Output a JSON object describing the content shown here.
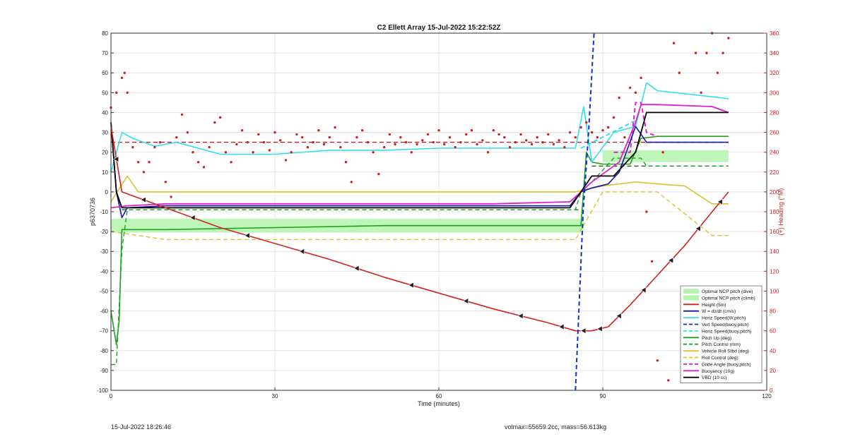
{
  "chart_data": {
    "type": "line",
    "title": "C2 Ellett Array 15-Jul-2022 15:22:52Z",
    "xlabel": "Time (minutes)",
    "ylabel": "p6370736",
    "y2label": "(+) Heading (°M)",
    "xlim": [
      0,
      120
    ],
    "ylim": [
      -100,
      80
    ],
    "y2lim": [
      0,
      360
    ],
    "xticks": [
      0,
      30,
      60,
      90,
      120
    ],
    "yticks": [
      -100,
      -90,
      -80,
      -70,
      -60,
      -50,
      -40,
      -30,
      -20,
      -10,
      0,
      10,
      20,
      30,
      40,
      50,
      60,
      70,
      80
    ],
    "y2ticks": [
      0,
      20,
      40,
      60,
      80,
      100,
      120,
      140,
      160,
      180,
      200,
      220,
      240,
      260,
      280,
      300,
      320,
      340,
      360
    ],
    "grid": true,
    "legend_position": "bottom-right",
    "colors": {
      "optimal": "#b6f5b0",
      "height": "#d42020",
      "w": "#1414a8",
      "horiz": "#30e0ee",
      "vert": "#1530c8",
      "pitch": "#20a020",
      "roll": "#dcc22a",
      "glide": "#e020d0",
      "buoy": "#e020d0",
      "vbd": "#000000",
      "heading": "#cc2020"
    },
    "bands": [
      {
        "name": "Optimal NCP pitch (dive)",
        "x": [
          0,
          86.5
        ],
        "y": [
          -20.5,
          -13.5
        ]
      },
      {
        "name": "Optimal NCP pitch (climb)",
        "x": [
          90,
          113
        ],
        "y": [
          15,
          21
        ]
      }
    ],
    "series": [
      {
        "name": "Height (5m)",
        "x": [
          0,
          2,
          10,
          20,
          30,
          40,
          50,
          60,
          70,
          80,
          85,
          88,
          91,
          95,
          100,
          105,
          110,
          113
        ],
        "y": [
          33,
          0,
          -8,
          -18,
          -26,
          -34,
          -43,
          -51,
          -59,
          -66,
          -70,
          -70,
          -68,
          -57,
          -42,
          -27,
          -10,
          0
        ]
      },
      {
        "name": "W = dz/dt (cm/s)",
        "x": [
          0,
          1,
          2,
          3,
          10,
          30,
          50,
          70,
          84,
          86,
          88,
          91,
          93,
          96,
          98,
          113
        ],
        "y": [
          35,
          0,
          -13,
          -8,
          -7,
          -7,
          -7,
          -7,
          -7,
          0,
          2,
          4,
          10,
          33,
          25,
          25
        ]
      },
      {
        "name": "Horiz Speed(W,pitch)",
        "x": [
          0,
          2,
          4,
          8,
          12,
          20,
          30,
          40,
          50,
          60,
          70,
          80,
          85,
          86.5,
          88,
          92,
          96,
          98,
          100,
          113
        ],
        "y": [
          10,
          30,
          27,
          23,
          25,
          19,
          19,
          21,
          21,
          22,
          22,
          22,
          22,
          43,
          15,
          30,
          33,
          55,
          51,
          47
        ]
      },
      {
        "name": "Vert Speed(buoy,pitch)",
        "x": [
          85,
          86.4,
          87.4,
          88.4
        ],
        "y": [
          -100,
          -10,
          30,
          80
        ]
      },
      {
        "name": "Horiz Speed(buoy,pitch)",
        "x": [
          86,
          96
        ],
        "y": [
          22,
          36
        ]
      },
      {
        "name": "Pitch Up (deg)",
        "x": [
          0,
          1,
          1.5,
          2,
          3,
          10,
          30,
          50,
          70,
          86,
          87,
          88,
          90,
          95,
          97,
          100,
          113
        ],
        "y": [
          -60,
          -77,
          -65,
          -19,
          -19,
          -19,
          -18,
          -17,
          -17,
          -17,
          20,
          15,
          14,
          14,
          27,
          28,
          28
        ]
      },
      {
        "name": "Pitch Control (mm)",
        "x": [
          0,
          1,
          2,
          3,
          10,
          30,
          50,
          70,
          85,
          86,
          88,
          92,
          97,
          98,
          113
        ],
        "y": [
          -87,
          -87,
          -29,
          -9,
          -9,
          -9,
          -9,
          -9,
          -9,
          0,
          5,
          17,
          17,
          13,
          13
        ]
      },
      {
        "name": "Vehicle Roll Stbd (deg)",
        "x": [
          0,
          3,
          5,
          10,
          20,
          30,
          40,
          50,
          60,
          70,
          80,
          85,
          90,
          96,
          100,
          105,
          110,
          113
        ],
        "y": [
          -5,
          8,
          0,
          0,
          0,
          0,
          0,
          0,
          0,
          0,
          0,
          0,
          3,
          5,
          4,
          3,
          -6,
          -6
        ]
      },
      {
        "name": "Roll Control (deg)",
        "x": [
          0,
          10,
          30,
          60,
          85,
          90,
          100,
          110,
          113
        ],
        "y": [
          -20,
          -24,
          -24,
          -24,
          -24,
          0,
          0,
          -22,
          -22
        ]
      },
      {
        "name": "Glide Angle (buoy,pitch)",
        "x": [
          92,
          95,
          96,
          97,
          98,
          100
        ],
        "y": [
          20,
          20,
          45,
          45,
          30,
          28
        ]
      },
      {
        "name": "Buoyancy (10g)",
        "x": [
          0,
          3,
          10,
          30,
          50,
          70,
          84,
          86,
          88,
          93,
          96,
          97,
          100,
          110,
          113
        ],
        "y": [
          -8,
          -7,
          -6,
          -6,
          -6,
          -6,
          -5,
          0,
          5,
          15,
          35,
          44,
          44,
          43,
          40
        ]
      },
      {
        "name": "VBD (10 cc)",
        "x": [
          0,
          1,
          2,
          3,
          10,
          30,
          50,
          70,
          84,
          86,
          88,
          92,
          96,
          98,
          113
        ],
        "y": [
          35,
          0,
          -8,
          -8,
          -8,
          -8,
          -8,
          -8,
          -8,
          0,
          8,
          8,
          20,
          40,
          40
        ]
      }
    ],
    "reference_lines": [
      {
        "name": "Height target (dashed red)",
        "y2": 250
      },
      {
        "name": "Pitch control (dashed green, dive)",
        "y": -9
      },
      {
        "name": "Pitch control (dashed green, climb)",
        "y": 13
      }
    ],
    "heading": {
      "name": "(+) Heading (°M)",
      "x": [
        0,
        1,
        2,
        2.5,
        3,
        4,
        5,
        6,
        7,
        8,
        9,
        10,
        11,
        12,
        13,
        14,
        15,
        16,
        17,
        18,
        19,
        20,
        21,
        22,
        23,
        24,
        25,
        26,
        27,
        28,
        29,
        30,
        31,
        32,
        33,
        34,
        35,
        36,
        37,
        38,
        39,
        40,
        41,
        42,
        43,
        44,
        45,
        46,
        47,
        48,
        49,
        50,
        51,
        52,
        53,
        54,
        55,
        56,
        57,
        58,
        59,
        60,
        61,
        62,
        63,
        64,
        65,
        66,
        67,
        68,
        69,
        70,
        71,
        72,
        73,
        74,
        75,
        76,
        77,
        78,
        79,
        80,
        81,
        82,
        83,
        84,
        85,
        86,
        87,
        88,
        89,
        90,
        91,
        92,
        93,
        94,
        95,
        96,
        97,
        98,
        99,
        100,
        101,
        102,
        103,
        104,
        105,
        106,
        107,
        108,
        109,
        110,
        111,
        112,
        113
      ],
      "y": [
        285,
        300,
        315,
        320,
        300,
        245,
        230,
        220,
        230,
        245,
        250,
        210,
        195,
        255,
        278,
        260,
        240,
        230,
        225,
        245,
        270,
        275,
        240,
        230,
        248,
        262,
        250,
        240,
        258,
        250,
        242,
        260,
        252,
        232,
        240,
        258,
        255,
        245,
        250,
        262,
        248,
        255,
        265,
        245,
        230,
        210,
        255,
        262,
        250,
        240,
        218,
        245,
        258,
        248,
        255,
        250,
        240,
        248,
        252,
        258,
        250,
        262,
        248,
        255,
        245,
        250,
        258,
        262,
        248,
        252,
        240,
        262,
        258,
        255,
        245,
        250,
        258,
        252,
        248,
        255,
        250,
        258,
        248,
        252,
        245,
        260,
        255,
        265,
        270,
        260,
        255,
        262,
        265,
        275,
        295,
        255,
        305,
        300,
        315,
        180,
        130,
        30,
        240,
        10,
        350,
        320,
        100,
        20,
        340,
        300,
        340,
        360,
        320,
        340,
        355
      ]
    }
  },
  "legend": [
    {
      "label": "Optimal NCP pitch (dive)",
      "kind": "band",
      "color": "#b6f5b0"
    },
    {
      "label": "Optimal NCP pitch (climb)",
      "kind": "band",
      "color": "#b6f5b0"
    },
    {
      "label": "Height (5m)",
      "kind": "line",
      "color": "#d42020"
    },
    {
      "label": "W = dz/dt (cm/s)",
      "kind": "line",
      "color": "#1414a8"
    },
    {
      "label": "Horiz Speed(W,pitch)",
      "kind": "line",
      "color": "#30e0ee"
    },
    {
      "label": "Vert Speed(buoy,pitch)",
      "kind": "dash",
      "color": "#1530c8"
    },
    {
      "label": "Horiz Speed(buoy,pitch)",
      "kind": "dash",
      "color": "#30e0ee"
    },
    {
      "label": "Pitch Up (deg)",
      "kind": "line",
      "color": "#20a020"
    },
    {
      "label": "Pitch Control (mm)",
      "kind": "dash",
      "color": "#20a020"
    },
    {
      "label": "Vehicle Roll Stbd (deg)",
      "kind": "line",
      "color": "#dcc22a"
    },
    {
      "label": "Roll Control (deg)",
      "kind": "dash",
      "color": "#dcc22a"
    },
    {
      "label": "Glide Angle (buoy,pitch)",
      "kind": "dash",
      "color": "#e020d0"
    },
    {
      "label": "Buoyancy (10g)",
      "kind": "line",
      "color": "#e020d0"
    },
    {
      "label": "VBD (10 cc)",
      "kind": "line",
      "color": "#000000"
    }
  ],
  "footer": {
    "left": "15-Jul-2022 18:26:46",
    "right": "volmax=55659.2cc, mass=56.613kg"
  }
}
